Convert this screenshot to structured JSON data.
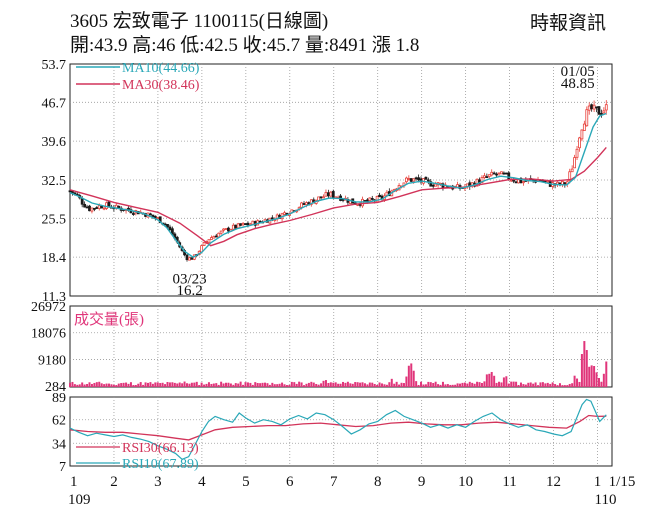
{
  "header": {
    "title": "3605  宏致電子 1100115(日線圖)",
    "quote": "開:43.9 高:46 低:42.5 收:45.7 量:8491 漲 1.8",
    "source": "時報資訊"
  },
  "chart_data": {
    "type": "candlestick",
    "price_panel": {
      "ylim": [
        11.3,
        53.7
      ],
      "yticks": [
        "53.7",
        "46.7",
        "39.6",
        "32.5",
        "25.5",
        "18.4",
        "11.3"
      ],
      "legend": [
        "MA10(44.66)",
        "MA30(38.46)"
      ],
      "annotations": [
        {
          "text": "01/05",
          "x_month": 12.55,
          "y": 51.5
        },
        {
          "text": "48.85",
          "x_month": 12.55,
          "y": 49.3
        },
        {
          "text": "03/23",
          "x_month": 3.72,
          "y": 13.6
        },
        {
          "text": "16.2",
          "x_month": 3.72,
          "y": 11.5
        }
      ],
      "close_series": [
        [
          1.0,
          30.5
        ],
        [
          1.15,
          29.8
        ],
        [
          1.3,
          28.2
        ],
        [
          1.45,
          27.2
        ],
        [
          1.6,
          27.6
        ],
        [
          1.8,
          27.9
        ],
        [
          2.0,
          27.5
        ],
        [
          2.2,
          27.2
        ],
        [
          2.4,
          26.9
        ],
        [
          2.6,
          26.6
        ],
        [
          2.8,
          26.1
        ],
        [
          3.0,
          25.4
        ],
        [
          3.15,
          24.6
        ],
        [
          3.3,
          23.0
        ],
        [
          3.45,
          21.0
        ],
        [
          3.55,
          19.5
        ],
        [
          3.65,
          18.3
        ],
        [
          3.75,
          18.1
        ],
        [
          3.85,
          18.6
        ],
        [
          4.0,
          20.3
        ],
        [
          4.15,
          21.7
        ],
        [
          4.3,
          22.4
        ],
        [
          4.5,
          23.2
        ],
        [
          4.7,
          23.8
        ],
        [
          4.9,
          24.2
        ],
        [
          5.1,
          24.5
        ],
        [
          5.3,
          24.8
        ],
        [
          5.5,
          25.3
        ],
        [
          5.7,
          25.7
        ],
        [
          5.9,
          26.5
        ],
        [
          6.1,
          27.2
        ],
        [
          6.3,
          28.0
        ],
        [
          6.5,
          28.6
        ],
        [
          6.7,
          29.3
        ],
        [
          6.9,
          29.9
        ],
        [
          7.1,
          29.5
        ],
        [
          7.3,
          28.9
        ],
        [
          7.5,
          28.3
        ],
        [
          7.7,
          28.5
        ],
        [
          7.9,
          28.8
        ],
        [
          8.1,
          29.2
        ],
        [
          8.3,
          30.4
        ],
        [
          8.5,
          31.8
        ],
        [
          8.7,
          32.6
        ],
        [
          8.9,
          32.5
        ],
        [
          9.1,
          32.0
        ],
        [
          9.3,
          31.8
        ],
        [
          9.5,
          31.6
        ],
        [
          9.7,
          31.2
        ],
        [
          9.9,
          31.0
        ],
        [
          10.1,
          31.6
        ],
        [
          10.3,
          32.3
        ],
        [
          10.5,
          33.1
        ],
        [
          10.7,
          33.6
        ],
        [
          10.9,
          33.2
        ],
        [
          11.1,
          32.6
        ],
        [
          11.3,
          32.2
        ],
        [
          11.5,
          32.5
        ],
        [
          11.7,
          32.4
        ],
        [
          11.9,
          31.8
        ],
        [
          12.1,
          31.6
        ],
        [
          12.3,
          31.9
        ],
        [
          12.45,
          35.5
        ],
        [
          12.55,
          39.5
        ],
        [
          12.65,
          42.5
        ],
        [
          12.75,
          44.6
        ],
        [
          12.85,
          45.5
        ],
        [
          12.95,
          45.2
        ],
        [
          13.05,
          44.9
        ],
        [
          13.2,
          45.7
        ]
      ],
      "ma10_series": [
        [
          1.0,
          30.2
        ],
        [
          1.2,
          29.5
        ],
        [
          1.5,
          28.3
        ],
        [
          1.8,
          27.7
        ],
        [
          2.1,
          27.3
        ],
        [
          2.4,
          26.9
        ],
        [
          2.7,
          26.3
        ],
        [
          3.0,
          25.2
        ],
        [
          3.2,
          23.8
        ],
        [
          3.4,
          21.6
        ],
        [
          3.6,
          19.5
        ],
        [
          3.8,
          18.4
        ],
        [
          4.0,
          19.3
        ],
        [
          4.2,
          21.0
        ],
        [
          4.5,
          22.6
        ],
        [
          4.8,
          23.6
        ],
        [
          5.1,
          24.2
        ],
        [
          5.4,
          24.8
        ],
        [
          5.7,
          25.4
        ],
        [
          6.0,
          26.3
        ],
        [
          6.3,
          27.5
        ],
        [
          6.6,
          28.6
        ],
        [
          6.9,
          29.2
        ],
        [
          7.2,
          29.1
        ],
        [
          7.5,
          28.5
        ],
        [
          7.8,
          28.5
        ],
        [
          8.1,
          29.0
        ],
        [
          8.4,
          30.6
        ],
        [
          8.7,
          31.9
        ],
        [
          9.0,
          32.3
        ],
        [
          9.3,
          31.9
        ],
        [
          9.6,
          31.4
        ],
        [
          9.9,
          31.0
        ],
        [
          10.2,
          31.6
        ],
        [
          10.5,
          32.6
        ],
        [
          10.8,
          33.2
        ],
        [
          11.1,
          32.9
        ],
        [
          11.4,
          32.4
        ],
        [
          11.7,
          32.2
        ],
        [
          12.0,
          31.7
        ],
        [
          12.3,
          31.6
        ],
        [
          12.5,
          33.0
        ],
        [
          12.7,
          37.6
        ],
        [
          12.9,
          42.2
        ],
        [
          13.05,
          44.2
        ],
        [
          13.2,
          44.66
        ]
      ],
      "ma30_series": [
        [
          1.0,
          30.7
        ],
        [
          1.5,
          29.6
        ],
        [
          2.0,
          28.4
        ],
        [
          2.5,
          27.5
        ],
        [
          3.0,
          26.6
        ],
        [
          3.5,
          24.6
        ],
        [
          3.9,
          22.3
        ],
        [
          4.2,
          20.5
        ],
        [
          4.5,
          21.3
        ],
        [
          4.8,
          22.5
        ],
        [
          5.2,
          23.6
        ],
        [
          5.6,
          24.4
        ],
        [
          6.0,
          25.1
        ],
        [
          6.5,
          26.2
        ],
        [
          7.0,
          27.4
        ],
        [
          7.5,
          28.1
        ],
        [
          8.0,
          28.4
        ],
        [
          8.5,
          29.5
        ],
        [
          9.0,
          30.7
        ],
        [
          9.5,
          31.0
        ],
        [
          10.0,
          31.2
        ],
        [
          10.5,
          31.9
        ],
        [
          11.0,
          32.6
        ],
        [
          11.5,
          32.7
        ],
        [
          12.0,
          32.3
        ],
        [
          12.4,
          32.6
        ],
        [
          12.7,
          34.1
        ],
        [
          13.0,
          36.6
        ],
        [
          13.2,
          38.46
        ]
      ]
    },
    "volume_panel": {
      "title": "成交量(張)",
      "ylim": [
        0,
        26972
      ],
      "yticks": [
        "26972",
        "18076",
        "9180",
        "284"
      ],
      "peaks": [
        [
          2.0,
          800
        ],
        [
          3.6,
          2600
        ],
        [
          4.3,
          1200
        ],
        [
          5.5,
          900
        ],
        [
          6.1,
          1300
        ],
        [
          6.8,
          4500
        ],
        [
          7.3,
          2200
        ],
        [
          8.3,
          3500
        ],
        [
          8.7,
          9000
        ],
        [
          8.75,
          10500
        ],
        [
          8.8,
          7000
        ],
        [
          9.3,
          2100
        ],
        [
          9.8,
          1500
        ],
        [
          10.3,
          3200
        ],
        [
          10.5,
          8600
        ],
        [
          10.6,
          6200
        ],
        [
          10.9,
          5500
        ],
        [
          11.5,
          1300
        ],
        [
          12.0,
          1000
        ],
        [
          12.5,
          4500
        ],
        [
          12.7,
          25500
        ],
        [
          12.8,
          13500
        ],
        [
          12.9,
          10000
        ],
        [
          13.0,
          7500
        ],
        [
          13.2,
          8491
        ]
      ]
    },
    "rsi_panel": {
      "ylim": [
        7,
        89
      ],
      "yticks": [
        "89",
        "62",
        "34",
        "7"
      ],
      "legend": [
        "RSI30(66.13)",
        "RSI10(67.89)"
      ],
      "rsi10_series": [
        [
          1.0,
          52
        ],
        [
          1.2,
          47
        ],
        [
          1.4,
          43
        ],
        [
          1.6,
          46
        ],
        [
          1.8,
          44
        ],
        [
          2.0,
          42
        ],
        [
          2.2,
          44
        ],
        [
          2.4,
          41
        ],
        [
          2.6,
          39
        ],
        [
          2.8,
          36
        ],
        [
          3.0,
          31
        ],
        [
          3.2,
          27
        ],
        [
          3.4,
          22
        ],
        [
          3.55,
          15
        ],
        [
          3.7,
          18
        ],
        [
          3.85,
          33
        ],
        [
          4.0,
          48
        ],
        [
          4.15,
          60
        ],
        [
          4.3,
          66
        ],
        [
          4.5,
          62
        ],
        [
          4.7,
          59
        ],
        [
          4.85,
          70
        ],
        [
          5.0,
          64
        ],
        [
          5.2,
          58
        ],
        [
          5.4,
          62
        ],
        [
          5.6,
          60
        ],
        [
          5.8,
          56
        ],
        [
          6.0,
          63
        ],
        [
          6.2,
          67
        ],
        [
          6.4,
          63
        ],
        [
          6.6,
          70
        ],
        [
          6.8,
          68
        ],
        [
          7.0,
          62
        ],
        [
          7.2,
          54
        ],
        [
          7.4,
          45
        ],
        [
          7.6,
          50
        ],
        [
          7.8,
          57
        ],
        [
          8.0,
          60
        ],
        [
          8.2,
          68
        ],
        [
          8.4,
          73
        ],
        [
          8.6,
          66
        ],
        [
          8.8,
          62
        ],
        [
          9.0,
          58
        ],
        [
          9.2,
          53
        ],
        [
          9.4,
          56
        ],
        [
          9.6,
          52
        ],
        [
          9.8,
          56
        ],
        [
          10.0,
          53
        ],
        [
          10.2,
          60
        ],
        [
          10.4,
          66
        ],
        [
          10.6,
          70
        ],
        [
          10.8,
          62
        ],
        [
          11.0,
          57
        ],
        [
          11.2,
          53
        ],
        [
          11.4,
          56
        ],
        [
          11.6,
          50
        ],
        [
          11.8,
          48
        ],
        [
          12.0,
          45
        ],
        [
          12.2,
          43
        ],
        [
          12.4,
          48
        ],
        [
          12.55,
          67
        ],
        [
          12.65,
          80
        ],
        [
          12.75,
          86
        ],
        [
          12.85,
          84
        ],
        [
          12.95,
          72
        ],
        [
          13.05,
          60
        ],
        [
          13.2,
          67.89
        ]
      ],
      "rsi30_series": [
        [
          1.0,
          50
        ],
        [
          1.4,
          48
        ],
        [
          1.8,
          47
        ],
        [
          2.2,
          47
        ],
        [
          2.6,
          45
        ],
        [
          3.0,
          43
        ],
        [
          3.4,
          40
        ],
        [
          3.7,
          38
        ],
        [
          4.0,
          44
        ],
        [
          4.3,
          50
        ],
        [
          4.7,
          53
        ],
        [
          5.1,
          54
        ],
        [
          5.5,
          55
        ],
        [
          5.9,
          55
        ],
        [
          6.3,
          57
        ],
        [
          6.7,
          58
        ],
        [
          7.1,
          56
        ],
        [
          7.5,
          54
        ],
        [
          7.9,
          55
        ],
        [
          8.3,
          58
        ],
        [
          8.7,
          59
        ],
        [
          9.1,
          57
        ],
        [
          9.5,
          56
        ],
        [
          9.9,
          56
        ],
        [
          10.3,
          58
        ],
        [
          10.7,
          59
        ],
        [
          11.1,
          57
        ],
        [
          11.5,
          55
        ],
        [
          11.9,
          53
        ],
        [
          12.3,
          52
        ],
        [
          12.6,
          60
        ],
        [
          12.8,
          67
        ],
        [
          13.0,
          66
        ],
        [
          13.2,
          66.13
        ]
      ]
    },
    "x_axis": {
      "ticks": [
        {
          "label": "1",
          "month": 1
        },
        {
          "label": "2",
          "month": 2
        },
        {
          "label": "3",
          "month": 3
        },
        {
          "label": "4",
          "month": 4
        },
        {
          "label": "5",
          "month": 5
        },
        {
          "label": "6",
          "month": 6
        },
        {
          "label": "7",
          "month": 7
        },
        {
          "label": "8",
          "month": 8
        },
        {
          "label": "9",
          "month": 9
        },
        {
          "label": "10",
          "month": 10
        },
        {
          "label": "11",
          "month": 11
        },
        {
          "label": "12",
          "month": 12
        },
        {
          "label": "1",
          "month": 13
        }
      ],
      "year_labels": [
        {
          "label": "109",
          "month": 1
        },
        {
          "label": "110",
          "month": 13
        }
      ],
      "end_label": "1/15",
      "xlim": [
        1,
        13.33
      ]
    },
    "colors": {
      "up": "#e8403a",
      "down": "#1a1a1a",
      "ma10": "#2aa8b8",
      "ma30": "#d2345a",
      "volume": "#e0357a",
      "rsi10": "#2aa8b8",
      "rsi30": "#d2345a",
      "grid": "#9a9a9a"
    }
  }
}
